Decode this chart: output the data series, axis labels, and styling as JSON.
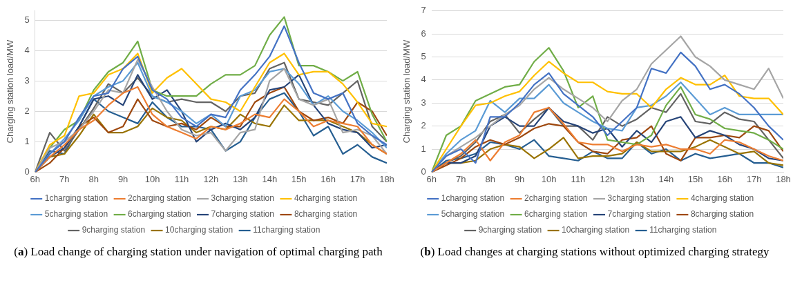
{
  "chart_data": [
    {
      "type": "line",
      "title": "(a) Load change of charging station under navigation of optimal charging path",
      "ylabel": "Charging station load/MW",
      "grid": "y",
      "legend": "bottom",
      "marker": "none",
      "line_style": "solid",
      "x": [
        6,
        6.5,
        7,
        7.5,
        8,
        8.5,
        9,
        9.5,
        10,
        10.5,
        11,
        11.5,
        12,
        12.5,
        13,
        13.5,
        14,
        14.5,
        15,
        15.5,
        16,
        16.5,
        17,
        17.5,
        18
      ],
      "xlim": [
        6,
        18
      ],
      "xticks": [
        {
          "value": 6,
          "label": "6h"
        },
        {
          "value": 7,
          "label": "7h"
        },
        {
          "value": 8,
          "label": "8h"
        },
        {
          "value": 9,
          "label": "9h"
        },
        {
          "value": 10,
          "label": "10h"
        },
        {
          "value": 11,
          "label": "11h"
        },
        {
          "value": 12,
          "label": "12h"
        },
        {
          "value": 13,
          "label": "13h"
        },
        {
          "value": 14,
          "label": "14h"
        },
        {
          "value": 15,
          "label": "15h"
        },
        {
          "value": 16,
          "label": "16h"
        },
        {
          "value": 17,
          "label": "17h"
        },
        {
          "value": 18,
          "label": "18h"
        }
      ],
      "ylim": [
        0,
        5.3
      ],
      "yticks": [
        0,
        1,
        2,
        3,
        4,
        5
      ],
      "series": [
        {
          "name": "1charging station",
          "color": "#4472c4",
          "values": [
            0,
            0.6,
            1.0,
            1.8,
            2.5,
            2.6,
            3.4,
            3.8,
            2.7,
            2.4,
            1.8,
            1.5,
            1.9,
            1.8,
            2.7,
            3.2,
            3.8,
            4.8,
            3.6,
            2.6,
            2.4,
            2.6,
            1.6,
            1.2,
            0.9
          ]
        },
        {
          "name": "2charging station",
          "color": "#ed7d31",
          "values": [
            0,
            0.5,
            0.9,
            1.4,
            1.7,
            2.2,
            2.6,
            2.8,
            1.9,
            1.5,
            1.3,
            1.1,
            1.5,
            1.4,
            1.6,
            1.9,
            1.8,
            2.4,
            2.0,
            1.5,
            1.7,
            1.6,
            1.5,
            0.9,
            0.6
          ]
        },
        {
          "name": "3charging station",
          "color": "#a5a5a5",
          "values": [
            0,
            0.8,
            1.0,
            1.4,
            2.0,
            2.7,
            2.6,
            3.7,
            2.8,
            2.0,
            1.4,
            1.2,
            1.3,
            0.7,
            1.3,
            1.4,
            3.0,
            3.4,
            2.4,
            2.2,
            2.4,
            1.3,
            1.4,
            1.2,
            0.6
          ]
        },
        {
          "name": "4charging station",
          "color": "#ffc000",
          "values": [
            0,
            0.9,
            1.2,
            2.5,
            2.6,
            3.2,
            3.4,
            3.9,
            2.6,
            3.1,
            3.4,
            2.9,
            2.4,
            2.3,
            2.0,
            2.8,
            3.6,
            3.9,
            3.2,
            3.3,
            3.3,
            2.9,
            2.3,
            1.6,
            1.5
          ]
        },
        {
          "name": "5charging station",
          "color": "#5b9bd5",
          "values": [
            0,
            0.6,
            1.1,
            1.7,
            2.5,
            2.8,
            3.0,
            3.6,
            2.5,
            2.3,
            2.0,
            1.6,
            1.9,
            1.5,
            2.5,
            2.7,
            3.3,
            3.4,
            2.9,
            2.2,
            2.5,
            2.0,
            1.7,
            1.3,
            0.8
          ]
        },
        {
          "name": "6charging station",
          "color": "#70ad47",
          "values": [
            0,
            0.8,
            1.4,
            1.7,
            2.7,
            3.3,
            3.6,
            4.3,
            2.7,
            2.5,
            2.5,
            2.5,
            2.9,
            3.2,
            3.2,
            3.5,
            4.5,
            5.1,
            3.5,
            3.5,
            3.3,
            3.0,
            3.3,
            1.9,
            1.0
          ]
        },
        {
          "name": "7charging station",
          "color": "#264478",
          "values": [
            0,
            0.5,
            0.8,
            1.5,
            2.4,
            2.5,
            2.2,
            3.2,
            2.4,
            2.7,
            2.0,
            1.0,
            1.4,
            1.6,
            1.4,
            1.8,
            2.7,
            2.8,
            3.2,
            2.2,
            1.6,
            1.4,
            1.3,
            0.8,
            0.9
          ]
        },
        {
          "name": "8charging station",
          "color": "#9e480e",
          "values": [
            0,
            0.3,
            0.8,
            1.5,
            1.8,
            1.3,
            1.5,
            2.4,
            1.7,
            1.5,
            1.6,
            1.4,
            1.8,
            1.5,
            1.5,
            2.3,
            2.6,
            2.8,
            2.0,
            1.7,
            1.8,
            1.6,
            2.3,
            2.0,
            1.2
          ]
        },
        {
          "name": "9charging station",
          "color": "#636363",
          "values": [
            0,
            1.3,
            0.7,
            1.4,
            2.1,
            2.9,
            2.6,
            3.1,
            2.5,
            2.3,
            2.4,
            2.3,
            2.3,
            2.0,
            2.5,
            2.6,
            3.4,
            3.6,
            2.4,
            2.3,
            2.2,
            2.6,
            3.0,
            1.5,
            1.0
          ]
        },
        {
          "name": "10charging station",
          "color": "#997300",
          "values": [
            0,
            0.5,
            0.6,
            1.2,
            1.9,
            1.3,
            1.3,
            1.5,
            2.1,
            1.8,
            1.7,
            1.3,
            1.5,
            1.4,
            1.9,
            1.6,
            1.5,
            2.2,
            1.7,
            1.7,
            1.7,
            1.5,
            1.3,
            0.9,
            0.6
          ]
        },
        {
          "name": "11charging station",
          "color": "#255e91",
          "values": [
            0,
            0.7,
            0.6,
            1.5,
            2.4,
            2.0,
            1.8,
            1.6,
            2.3,
            1.8,
            1.5,
            1.5,
            1.4,
            0.7,
            1.0,
            1.8,
            2.4,
            2.6,
            2.0,
            1.2,
            1.5,
            0.6,
            0.9,
            0.5,
            0.3
          ]
        }
      ]
    },
    {
      "type": "line",
      "title": "(b) Load changes at charging stations without optimized charging strategy",
      "ylabel": "Charging station load/MW",
      "grid": "y",
      "legend": "bottom",
      "marker": "none",
      "line_style": "solid",
      "x": [
        6,
        6.5,
        7,
        7.5,
        8,
        8.5,
        9,
        9.5,
        10,
        10.5,
        11,
        11.5,
        12,
        12.5,
        13,
        13.5,
        14,
        14.5,
        15,
        15.5,
        16,
        16.5,
        17,
        17.5,
        18
      ],
      "xlim": [
        6,
        18
      ],
      "xticks": [
        {
          "value": 6,
          "label": "6h"
        },
        {
          "value": 7,
          "label": "7h"
        },
        {
          "value": 8,
          "label": "8h"
        },
        {
          "value": 9,
          "label": "9h"
        },
        {
          "value": 10,
          "label": "10h"
        },
        {
          "value": 11,
          "label": "11h"
        },
        {
          "value": 12,
          "label": "12h"
        },
        {
          "value": 13,
          "label": "13h"
        },
        {
          "value": 14,
          "label": "14h"
        },
        {
          "value": 15,
          "label": "15h"
        },
        {
          "value": 16,
          "label": "16h"
        },
        {
          "value": 17,
          "label": "17h"
        },
        {
          "value": 18,
          "label": "18h"
        }
      ],
      "ylim": [
        0,
        7
      ],
      "yticks": [
        0,
        1,
        2,
        3,
        4,
        5,
        6,
        7
      ],
      "series": [
        {
          "name": "1charging station",
          "color": "#4472c4",
          "values": [
            0,
            0.7,
            1.0,
            0.4,
            2.4,
            2.4,
            3.0,
            3.8,
            4.3,
            3.4,
            2.9,
            2.4,
            1.6,
            2.2,
            2.8,
            4.5,
            4.3,
            5.2,
            4.6,
            3.6,
            3.8,
            3.4,
            2.8,
            2.0,
            1.4
          ]
        },
        {
          "name": "2charging station",
          "color": "#ed7d31",
          "values": [
            0,
            0.4,
            0.8,
            1.4,
            0.5,
            1.3,
            1.6,
            2.6,
            2.8,
            2.1,
            1.3,
            1.2,
            1.2,
            0.9,
            1.2,
            1.1,
            1.2,
            1.0,
            1.0,
            0.8,
            1.4,
            1.3,
            1.0,
            0.7,
            0.5
          ]
        },
        {
          "name": "3charging station",
          "color": "#a5a5a5",
          "values": [
            0,
            0.7,
            1.1,
            1.5,
            2.0,
            2.5,
            2.9,
            3.6,
            4.1,
            3.6,
            3.2,
            2.8,
            2.2,
            3.1,
            3.6,
            4.7,
            5.3,
            5.9,
            5.0,
            4.6,
            4.0,
            3.8,
            3.6,
            4.5,
            3.2
          ]
        },
        {
          "name": "4charging station",
          "color": "#ffc000",
          "values": [
            0,
            1.0,
            2.0,
            2.9,
            3.0,
            3.3,
            3.5,
            4.2,
            4.8,
            4.3,
            3.9,
            3.9,
            3.5,
            3.4,
            3.4,
            2.8,
            3.6,
            4.1,
            3.8,
            3.8,
            4.2,
            3.3,
            3.2,
            3.2,
            2.5
          ]
        },
        {
          "name": "5charging station",
          "color": "#5b9bd5",
          "values": [
            0,
            0.8,
            1.4,
            1.8,
            3.1,
            2.6,
            3.2,
            3.2,
            3.8,
            3.0,
            2.6,
            2.2,
            1.9,
            1.8,
            2.8,
            2.9,
            3.3,
            3.9,
            3.2,
            2.5,
            2.8,
            2.5,
            2.5,
            2.5,
            2.5
          ]
        },
        {
          "name": "6charging station",
          "color": "#70ad47",
          "values": [
            0,
            1.6,
            2.0,
            3.1,
            3.4,
            3.7,
            3.8,
            4.8,
            5.4,
            4.4,
            2.8,
            3.3,
            1.4,
            1.3,
            1.2,
            1.6,
            2.9,
            3.7,
            2.5,
            2.3,
            1.9,
            1.8,
            1.7,
            1.4,
            1.0
          ]
        },
        {
          "name": "7charging station",
          "color": "#264478",
          "values": [
            0,
            0.4,
            0.4,
            0.7,
            2.0,
            2.4,
            2.0,
            2.0,
            2.8,
            2.2,
            2.0,
            1.7,
            1.9,
            1.1,
            1.8,
            1.3,
            2.2,
            2.4,
            1.5,
            1.8,
            1.6,
            1.2,
            1.0,
            0.6,
            0.5
          ]
        },
        {
          "name": "8charging station",
          "color": "#9e480e",
          "values": [
            0,
            0.3,
            0.6,
            1.1,
            1.4,
            1.2,
            1.5,
            1.9,
            2.1,
            2.0,
            1.3,
            0.9,
            0.8,
            1.4,
            1.5,
            2.0,
            0.8,
            0.5,
            1.5,
            1.5,
            1.6,
            1.5,
            2.0,
            1.8,
            0.9
          ]
        },
        {
          "name": "9charging station",
          "color": "#636363",
          "values": [
            0,
            0.4,
            0.7,
            1.3,
            2.2,
            2.5,
            1.7,
            2.3,
            2.8,
            2.0,
            2.0,
            1.4,
            2.4,
            2.0,
            2.3,
            2.8,
            2.6,
            3.4,
            2.2,
            2.1,
            2.6,
            2.3,
            2.2,
            1.4,
            0.6
          ]
        },
        {
          "name": "10charging station",
          "color": "#997300",
          "values": [
            0,
            0.4,
            0.4,
            0.5,
            1.0,
            1.2,
            1.1,
            0.6,
            1.0,
            1.5,
            0.6,
            0.7,
            0.7,
            0.8,
            1.3,
            0.9,
            0.9,
            0.9,
            1.1,
            1.4,
            1.1,
            0.8,
            0.9,
            0.4,
            0.3
          ]
        },
        {
          "name": "11charging station",
          "color": "#255e91",
          "values": [
            0,
            0.5,
            0.6,
            0.8,
            1.3,
            1.2,
            1.0,
            1.4,
            0.7,
            0.6,
            0.5,
            0.9,
            0.6,
            0.6,
            1.3,
            0.8,
            1.0,
            0.5,
            0.8,
            0.6,
            0.7,
            0.8,
            0.4,
            0.4,
            0.2
          ]
        }
      ]
    }
  ]
}
